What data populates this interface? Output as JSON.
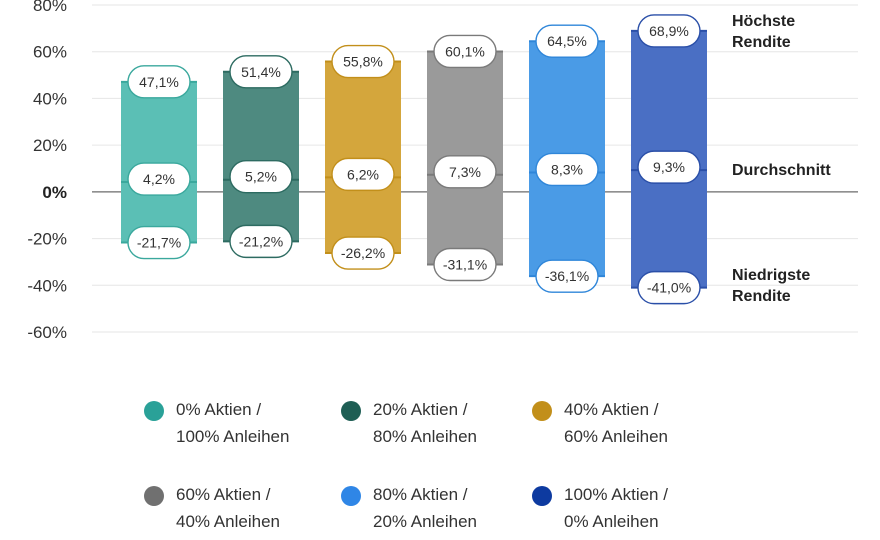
{
  "chart_data": {
    "type": "bar",
    "subtype": "floating-range",
    "title": "",
    "xlabel": "",
    "ylabel": "",
    "ylim": [
      -60,
      80
    ],
    "y_ticks": [
      "80%",
      "60%",
      "40%",
      "20%",
      "0%",
      "-20%",
      "-40%",
      "-60%"
    ],
    "grid": true,
    "legend_position": "bottom",
    "categories": [
      "0% Aktien / 100% Anleihen",
      "20% Aktien / 80% Anleihen",
      "40% Aktien / 60% Anleihen",
      "60% Aktien / 40% Anleihen",
      "80% Aktien / 20% Anleihen",
      "100% Aktien / 0% Anleihen"
    ],
    "series": [
      {
        "name": "Höchste Rendite",
        "values": [
          47.1,
          51.4,
          55.8,
          60.1,
          64.5,
          68.9
        ],
        "labels": [
          "47,1%",
          "51,4%",
          "55,8%",
          "60,1%",
          "64,5%",
          "68,9%"
        ]
      },
      {
        "name": "Durchschnitt",
        "values": [
          4.2,
          5.2,
          6.2,
          7.3,
          8.3,
          9.3
        ],
        "labels": [
          "4,2%",
          "5,2%",
          "6,2%",
          "7,3%",
          "8,3%",
          "9,3%"
        ]
      },
      {
        "name": "Niedrigste Rendite",
        "values": [
          -21.7,
          -21.2,
          -26.2,
          -31.1,
          -36.1,
          -41.0
        ],
        "labels": [
          "-21,7%",
          "-21,2%",
          "-26,2%",
          "-31,1%",
          "-36,1%",
          "-41,0%"
        ]
      }
    ],
    "colors": [
      "#5bbfb5",
      "#4e8a80",
      "#d4a63c",
      "#9a9a9a",
      "#4a9be6",
      "#4a6fc4"
    ],
    "border_colors": [
      "#3aa89d",
      "#2d6b61",
      "#c28f1a",
      "#7a7a7a",
      "#2f86d9",
      "#2a4fa8"
    ],
    "side_labels": {
      "max": [
        "Höchste",
        "Rendite"
      ],
      "avg": [
        "Durchschnitt"
      ],
      "min": [
        "Niedrigste",
        "Rendite"
      ]
    },
    "legend": [
      {
        "line1": "0% Aktien /",
        "line2": "100% Anleihen",
        "color": "#2aa198"
      },
      {
        "line1": "20% Aktien /",
        "line2": "80% Anleihen",
        "color": "#1e5e54"
      },
      {
        "line1": "40% Aktien /",
        "line2": "60% Anleihen",
        "color": "#c28f1a"
      },
      {
        "line1": "60% Aktien /",
        "line2": "40% Anleihen",
        "color": "#707070"
      },
      {
        "line1": "80% Aktien /",
        "line2": "20% Anleihen",
        "color": "#2f86e6"
      },
      {
        "line1": "100% Aktien /",
        "line2": "0% Anleihen",
        "color": "#0d3aa0"
      }
    ]
  }
}
